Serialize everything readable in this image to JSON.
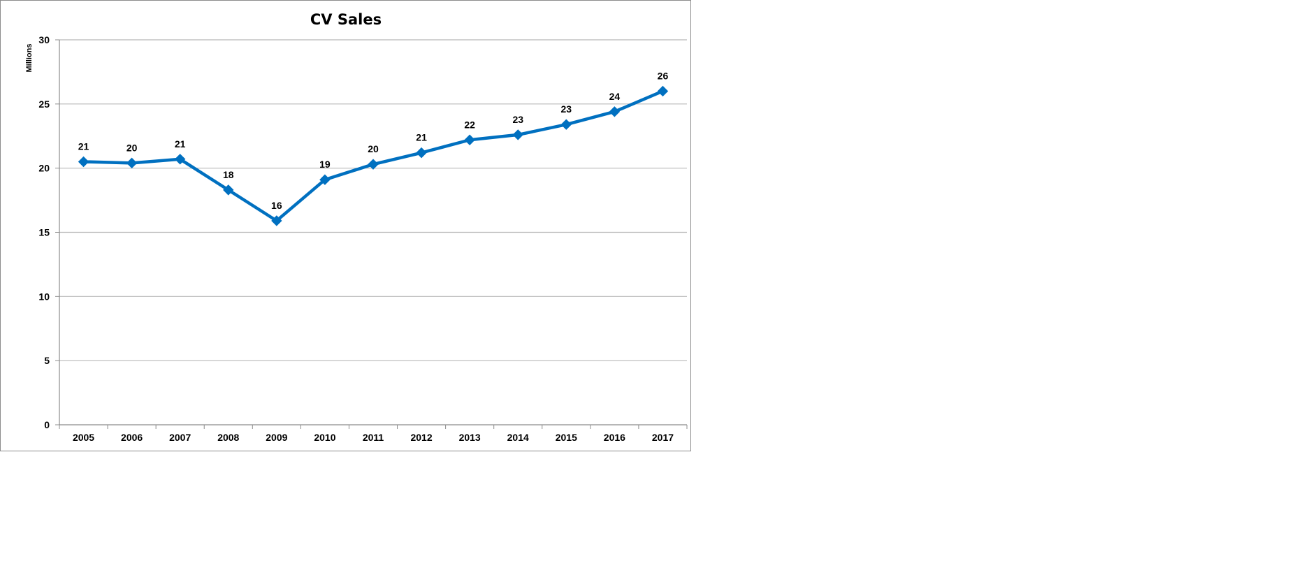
{
  "chart_data": {
    "type": "line",
    "title": "CV Sales",
    "ylabel": "Millions",
    "xlabel": "",
    "categories": [
      "2005",
      "2006",
      "2007",
      "2008",
      "2009",
      "2010",
      "2011",
      "2012",
      "2013",
      "2014",
      "2015",
      "2016",
      "2017"
    ],
    "values": [
      20.5,
      20.4,
      20.7,
      18.3,
      15.9,
      19.1,
      20.3,
      21.2,
      22.2,
      22.6,
      23.4,
      24.4,
      26.0
    ],
    "data_labels": [
      "21",
      "20",
      "21",
      "18",
      "16",
      "19",
      "20",
      "21",
      "22",
      "23",
      "23",
      "24",
      "26"
    ],
    "ylim": [
      0,
      30
    ],
    "yticks": [
      0,
      5,
      10,
      15,
      20,
      25,
      30
    ],
    "grid": true,
    "legend": "none",
    "line_color": "#0070C0",
    "marker": "diamond"
  }
}
